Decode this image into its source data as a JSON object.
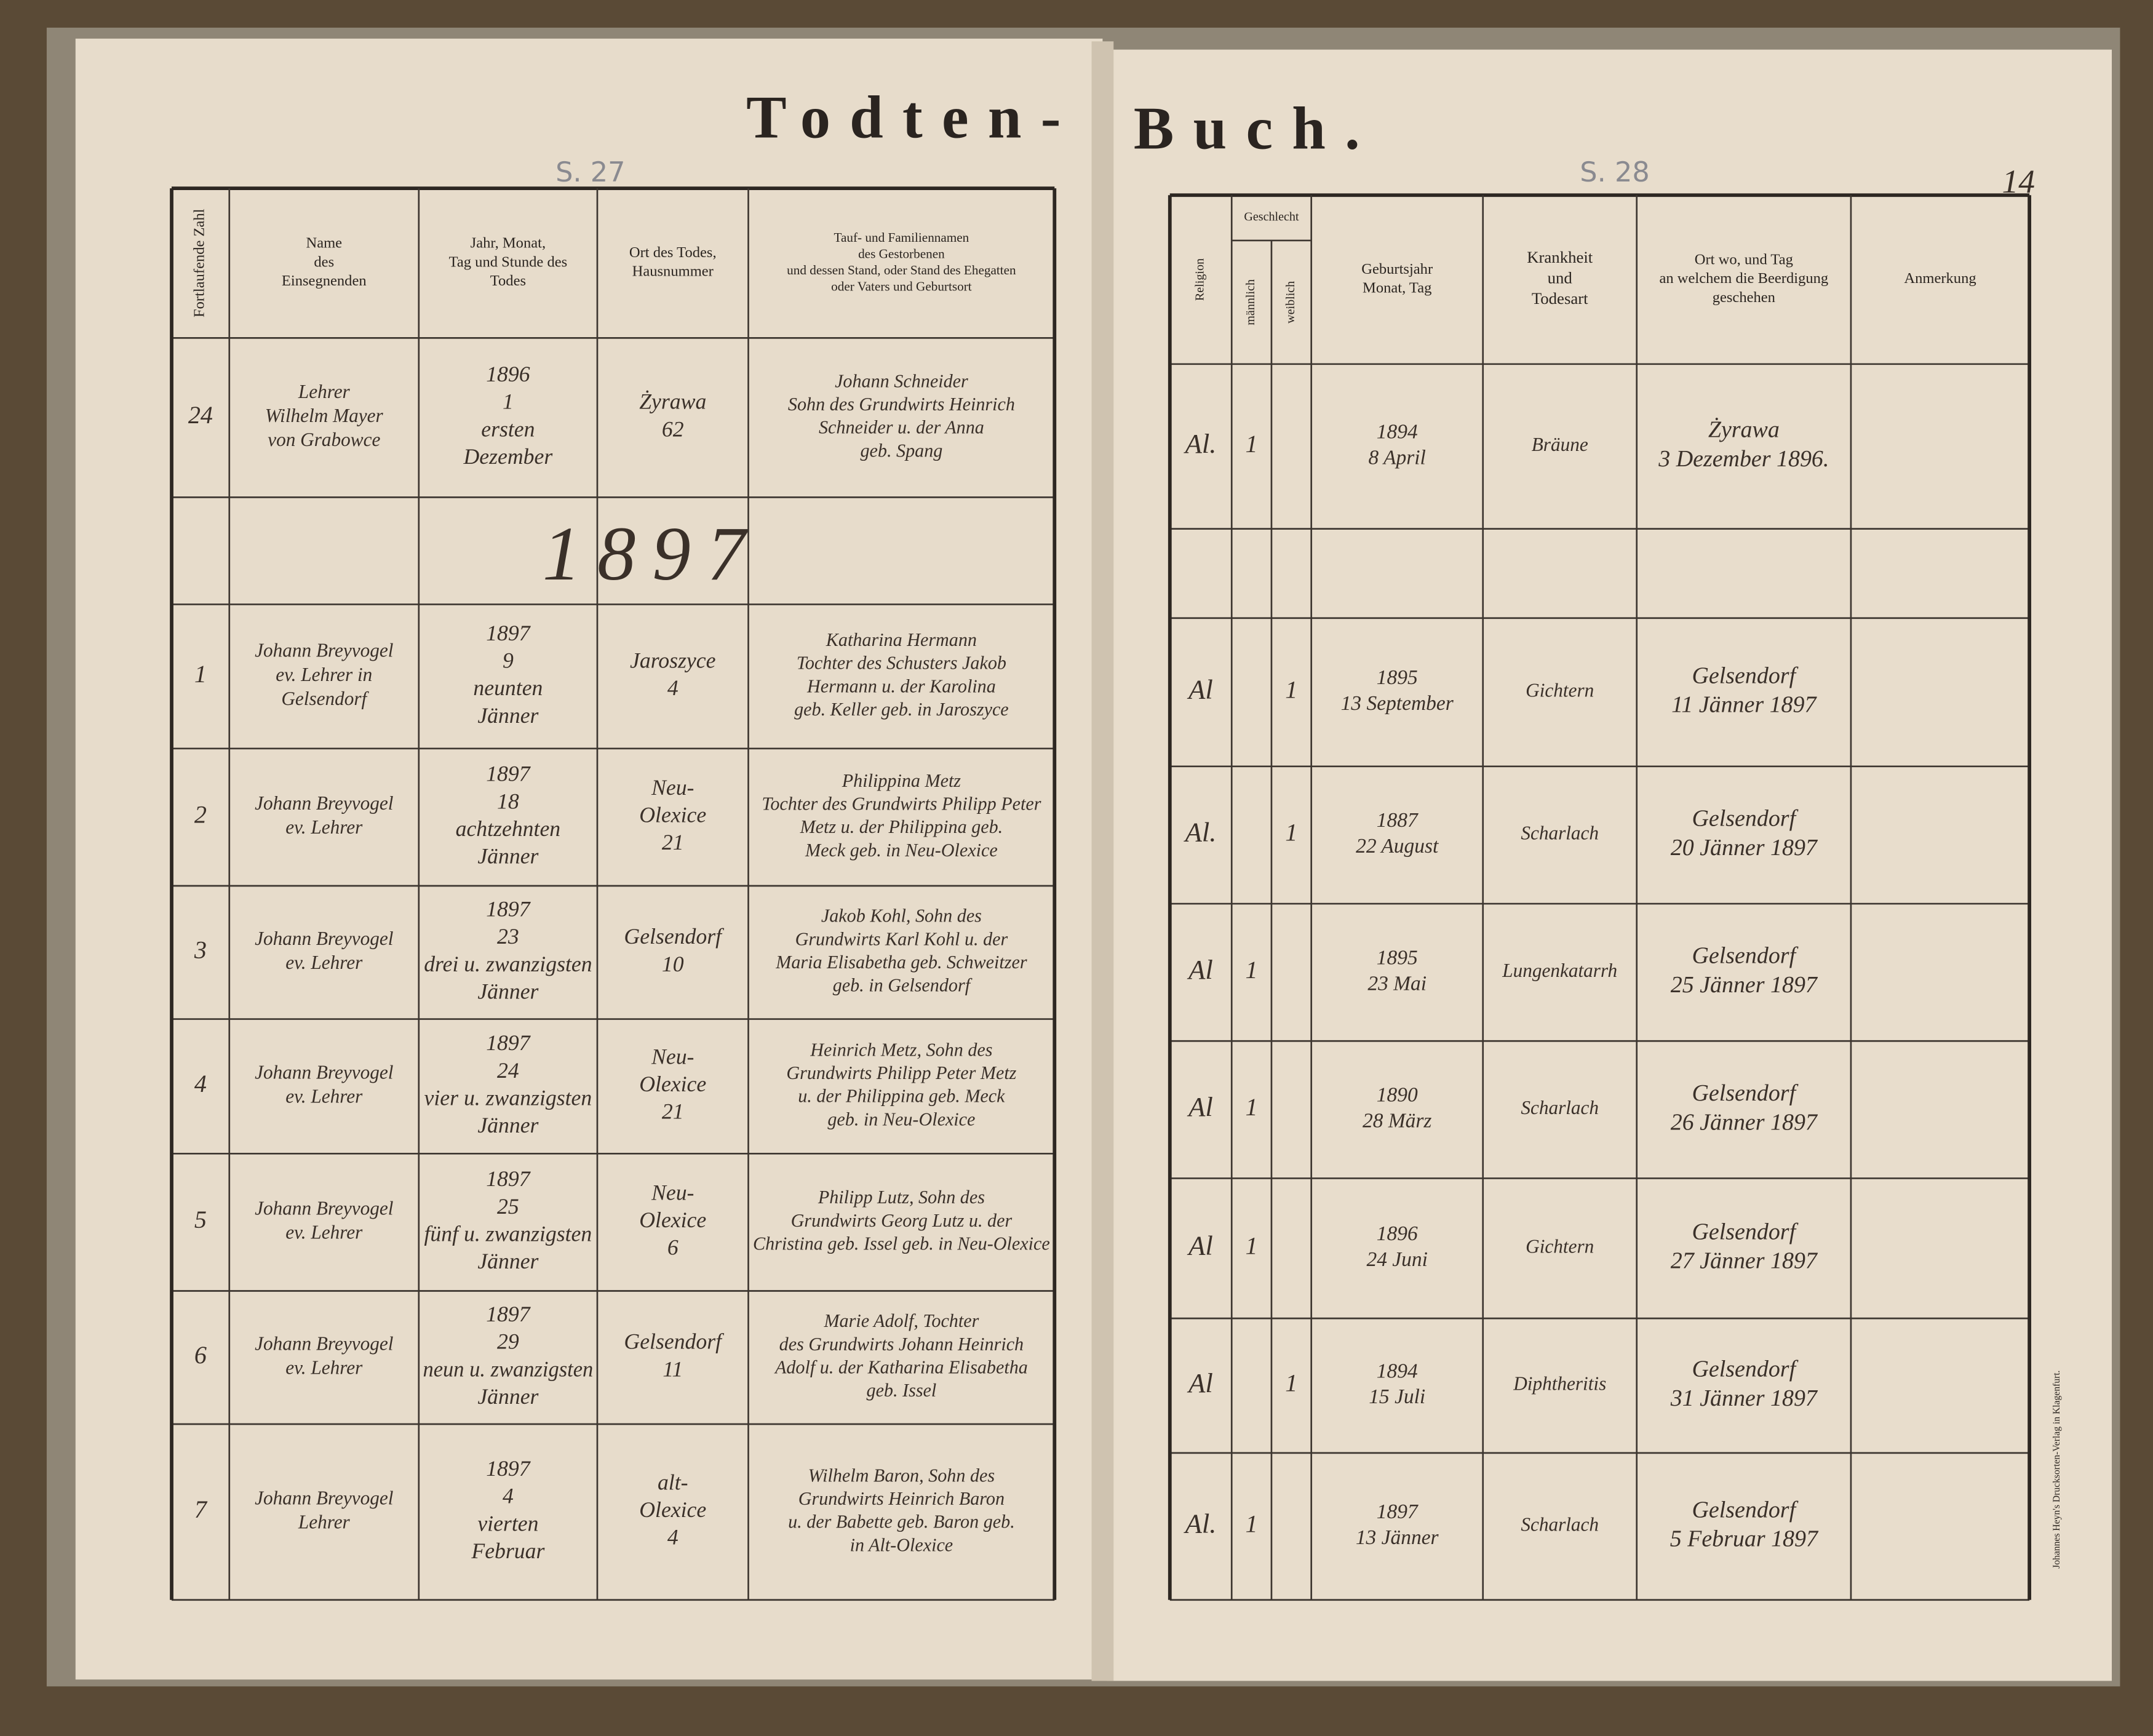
{
  "header": {
    "left_title": "Todten-",
    "right_title": "Buch.",
    "left_page_mark": "S. 27",
    "right_page_mark": "S. 28",
    "folio": "14",
    "year_divider": "1897",
    "imprint": "Johannes Heyn's Drucksorten-Verlag in Klagenfurt."
  },
  "left_table": {
    "headers": [
      [
        "Fortlaufende Zahl"
      ],
      [
        "Name",
        "des",
        "Einsegnenden"
      ],
      [
        "Jahr, Monat,",
        "Tag und Stunde des",
        "Todes"
      ],
      [
        "Ort des Todes,",
        "Hausnummer"
      ],
      [
        "Tauf- und Familiennamen",
        "des Gestorbenen",
        "und dessen Stand, oder Stand des Ehegatten",
        "oder Vaters und Geburtsort"
      ]
    ],
    "rows": [
      [
        [
          "24"
        ],
        [
          "Lehrer",
          "Wilhelm Mayer",
          "von Grabowce"
        ],
        [
          "1896",
          "1",
          "ersten",
          "Dezember"
        ],
        [
          "Żyrawa",
          "62"
        ],
        [
          "Johann Schneider",
          "Sohn des Grundwirts Heinrich",
          "Schneider u. der Anna",
          "geb. Spang"
        ]
      ],
      [
        [
          "1"
        ],
        [
          "Johann Breyvogel",
          "ev. Lehrer in",
          "Gelsendorf"
        ],
        [
          "1897",
          "9",
          "neunten",
          "Jänner"
        ],
        [
          "Jaroszyce",
          "4"
        ],
        [
          "Katharina Hermann",
          "Tochter des Schusters Jakob",
          "Hermann u. der Karolina",
          "geb. Keller geb. in Jaroszyce"
        ]
      ],
      [
        [
          "2"
        ],
        [
          "Johann Breyvogel",
          "ev. Lehrer"
        ],
        [
          "1897",
          "18",
          "achtzehnten",
          "Jänner"
        ],
        [
          "Neu-",
          "Olexice",
          "21"
        ],
        [
          "Philippina Metz",
          "Tochter des Grundwirts Philipp Peter",
          "Metz u. der Philippina geb.",
          "Meck geb. in Neu-Olexice"
        ]
      ],
      [
        [
          "3"
        ],
        [
          "Johann Breyvogel",
          "ev. Lehrer"
        ],
        [
          "1897",
          "23",
          "drei u. zwanzigsten",
          "Jänner"
        ],
        [
          "Gelsendorf",
          "10"
        ],
        [
          "Jakob Kohl, Sohn des",
          "Grundwirts Karl Kohl u. der",
          "Maria Elisabetha geb. Schweitzer",
          "geb. in Gelsendorf"
        ]
      ],
      [
        [
          "4"
        ],
        [
          "Johann Breyvogel",
          "ev. Lehrer"
        ],
        [
          "1897",
          "24",
          "vier u. zwanzigsten",
          "Jänner"
        ],
        [
          "Neu-",
          "Olexice",
          "21"
        ],
        [
          "Heinrich Metz, Sohn des",
          "Grundwirts Philipp Peter Metz",
          "u. der Philippina geb. Meck",
          "geb. in Neu-Olexice"
        ]
      ],
      [
        [
          "5"
        ],
        [
          "Johann Breyvogel",
          "ev. Lehrer"
        ],
        [
          "1897",
          "25",
          "fünf u. zwanzigsten",
          "Jänner"
        ],
        [
          "Neu-",
          "Olexice",
          "6"
        ],
        [
          "Philipp Lutz, Sohn des",
          "Grundwirts Georg Lutz u. der",
          "Christina geb. Issel geb. in Neu-Olexice"
        ]
      ],
      [
        [
          "6"
        ],
        [
          "Johann Breyvogel",
          "ev. Lehrer"
        ],
        [
          "1897",
          "29",
          "neun u. zwanzigsten",
          "Jänner"
        ],
        [
          "Gelsendorf",
          "11"
        ],
        [
          "Marie Adolf, Tochter",
          "des Grundwirts Johann Heinrich",
          "Adolf u. der Katharina Elisabetha",
          "geb. Issel"
        ]
      ],
      [
        [
          "7"
        ],
        [
          "Johann Breyvogel",
          "Lehrer"
        ],
        [
          "1897",
          "4",
          "vierten",
          "Februar"
        ],
        [
          "alt-",
          "Olexice",
          "4"
        ],
        [
          "Wilhelm Baron, Sohn des",
          "Grundwirts Heinrich Baron",
          "u. der Babette geb. Baron geb.",
          "in Alt-Olexice"
        ]
      ]
    ]
  },
  "right_table": {
    "group_header": "Geschlecht",
    "headers": [
      [
        "Religion"
      ],
      [
        "männlich"
      ],
      [
        "weiblich"
      ],
      [
        "Geburtsjahr",
        "Monat, Tag"
      ],
      [
        "Krankheit",
        "und",
        "Todesart"
      ],
      [
        "Ort wo, und Tag",
        "an welchem die Beerdigung",
        "geschehen"
      ],
      [
        "Anmerkung"
      ]
    ],
    "rows": [
      [
        [
          "Al."
        ],
        [
          "1"
        ],
        null,
        [
          "1894",
          "8 April"
        ],
        [
          "Bräune"
        ],
        [
          "Żyrawa",
          "3 Dezember 1896."
        ]
      ],
      [
        [
          "Al"
        ],
        null,
        [
          "1"
        ],
        [
          "1895",
          "13 September"
        ],
        [
          "Gichtern"
        ],
        [
          "Gelsendorf",
          "11 Jänner 1897"
        ]
      ],
      [
        [
          "Al."
        ],
        null,
        [
          "1"
        ],
        [
          "1887",
          "22 August"
        ],
        [
          "Scharlach"
        ],
        [
          "Gelsendorf",
          "20 Jänner 1897"
        ]
      ],
      [
        [
          "Al"
        ],
        [
          "1"
        ],
        null,
        [
          "1895",
          "23 Mai"
        ],
        [
          "Lungenkatarrh"
        ],
        [
          "Gelsendorf",
          "25 Jänner 1897"
        ]
      ],
      [
        [
          "Al"
        ],
        [
          "1"
        ],
        null,
        [
          "1890",
          "28 März"
        ],
        [
          "Scharlach"
        ],
        [
          "Gelsendorf",
          "26 Jänner 1897"
        ]
      ],
      [
        [
          "Al"
        ],
        [
          "1"
        ],
        null,
        [
          "1896",
          "24 Juni"
        ],
        [
          "Gichtern"
        ],
        [
          "Gelsendorf",
          "27 Jänner 1897"
        ]
      ],
      [
        [
          "Al"
        ],
        null,
        [
          "1"
        ],
        [
          "1894",
          "15 Juli"
        ],
        [
          "Diphtheritis"
        ],
        [
          "Gelsendorf",
          "31 Jänner 1897"
        ]
      ],
      [
        [
          "Al."
        ],
        [
          "1"
        ],
        null,
        [
          "1897",
          "13 Jänner"
        ],
        [
          "Scharlach"
        ],
        [
          "Gelsendorf",
          "5 Februar 1897"
        ]
      ]
    ]
  }
}
